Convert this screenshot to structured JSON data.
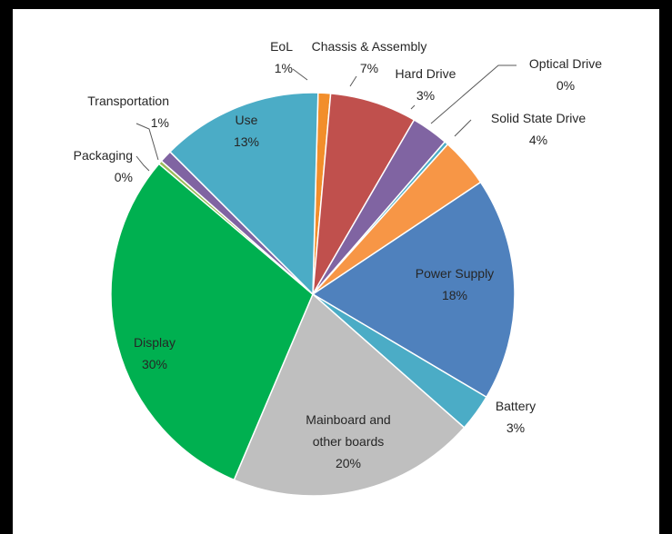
{
  "chart_data": {
    "type": "pie",
    "title": "",
    "slices": [
      {
        "name": "EoL",
        "value": 1,
        "label_text": "1%",
        "color": "#f28e2b"
      },
      {
        "name": "Chassis & Assembly",
        "value": 7,
        "label_text": "7%",
        "color": "#c0504d"
      },
      {
        "name": "Hard Drive",
        "value": 3,
        "label_text": "3%",
        "color": "#8064a2"
      },
      {
        "name": "Optical Drive",
        "value": 0,
        "label_text": "0%",
        "color": "#4bacc6"
      },
      {
        "name": "Solid State Drive",
        "value": 4,
        "label_text": "4%",
        "color": "#f79646"
      },
      {
        "name": "Power Supply",
        "value": 18,
        "label_text": "18%",
        "color": "#4f81bd"
      },
      {
        "name": "Battery",
        "value": 3,
        "label_text": "3%",
        "color": "#4bacc6"
      },
      {
        "name": "Mainboard and other boards",
        "value": 20,
        "label_text": "20%",
        "color": "#bfbfbf"
      },
      {
        "name": "Display",
        "value": 30,
        "label_text": "30%",
        "color": "#00b050"
      },
      {
        "name": "Packaging",
        "value": 0,
        "label_text": "0%",
        "color": "#9bbb59"
      },
      {
        "name": "Transportation",
        "value": 1,
        "label_text": "1%",
        "color": "#8064a2"
      },
      {
        "name": "Use",
        "value": 13,
        "label_text": "13%",
        "color": "#4bacc6"
      }
    ],
    "legend": "none",
    "data_labels": "category name and percentage"
  }
}
